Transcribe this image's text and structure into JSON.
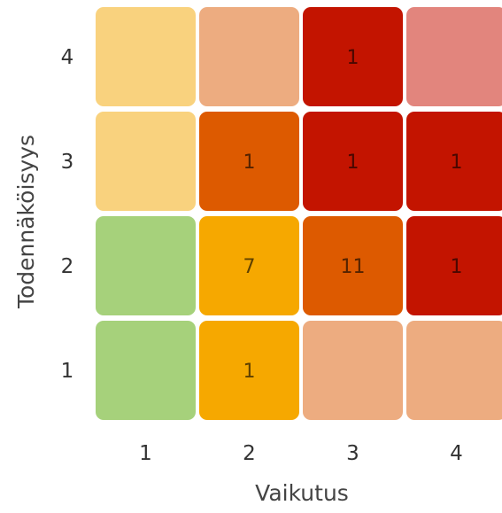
{
  "chart_data": {
    "type": "heatmap",
    "xlabel": "Vaikutus",
    "ylabel": "Todennäköisyys",
    "x_categories": [
      "1",
      "2",
      "3",
      "4"
    ],
    "y_categories": [
      "1",
      "2",
      "3",
      "4"
    ],
    "cells": [
      {
        "x": "1",
        "y": "4",
        "value": null,
        "color": "#f9d27e"
      },
      {
        "x": "2",
        "y": "4",
        "value": null,
        "color": "#edac80"
      },
      {
        "x": "3",
        "y": "4",
        "value": 1,
        "color": "#c31400"
      },
      {
        "x": "4",
        "y": "4",
        "value": null,
        "color": "#e2857d"
      },
      {
        "x": "1",
        "y": "3",
        "value": null,
        "color": "#f9d27e"
      },
      {
        "x": "2",
        "y": "3",
        "value": 1,
        "color": "#dd5a00"
      },
      {
        "x": "3",
        "y": "3",
        "value": 1,
        "color": "#c31400"
      },
      {
        "x": "4",
        "y": "3",
        "value": 1,
        "color": "#c31400"
      },
      {
        "x": "1",
        "y": "2",
        "value": null,
        "color": "#a6d17b"
      },
      {
        "x": "2",
        "y": "2",
        "value": 7,
        "color": "#f6a800"
      },
      {
        "x": "3",
        "y": "2",
        "value": 11,
        "color": "#dd5a00"
      },
      {
        "x": "4",
        "y": "2",
        "value": 1,
        "color": "#c31400"
      },
      {
        "x": "1",
        "y": "1",
        "value": null,
        "color": "#a6d17b"
      },
      {
        "x": "2",
        "y": "1",
        "value": 1,
        "color": "#f6a800"
      },
      {
        "x": "3",
        "y": "1",
        "value": null,
        "color": "#edac80"
      },
      {
        "x": "4",
        "y": "1",
        "value": null,
        "color": "#edac80"
      }
    ]
  }
}
